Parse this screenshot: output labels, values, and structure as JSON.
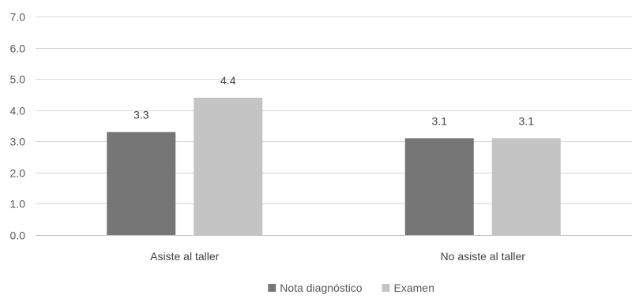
{
  "chart_data": {
    "type": "bar",
    "title": "",
    "xlabel": "",
    "ylabel": "",
    "categories": [
      "Asiste al taller",
      "No asiste al taller"
    ],
    "series": [
      {
        "name": "Nota diagnóstico",
        "values": [
          3.3,
          3.1
        ],
        "color": "#767676"
      },
      {
        "name": "Examen",
        "values": [
          4.4,
          3.1
        ],
        "color": "#c4c4c4"
      }
    ],
    "data_labels": [
      [
        "3.3",
        "3.1"
      ],
      [
        "4.4",
        "3.1"
      ]
    ],
    "ylim": [
      0,
      7
    ],
    "yticks": [
      0,
      1,
      2,
      3,
      4,
      5,
      6,
      7
    ],
    "ytick_labels": [
      "0.0",
      "1.0",
      "2.0",
      "3.0",
      "4.0",
      "5.0",
      "6.0",
      "7.0"
    ],
    "grid": true,
    "legend_position": "bottom"
  }
}
